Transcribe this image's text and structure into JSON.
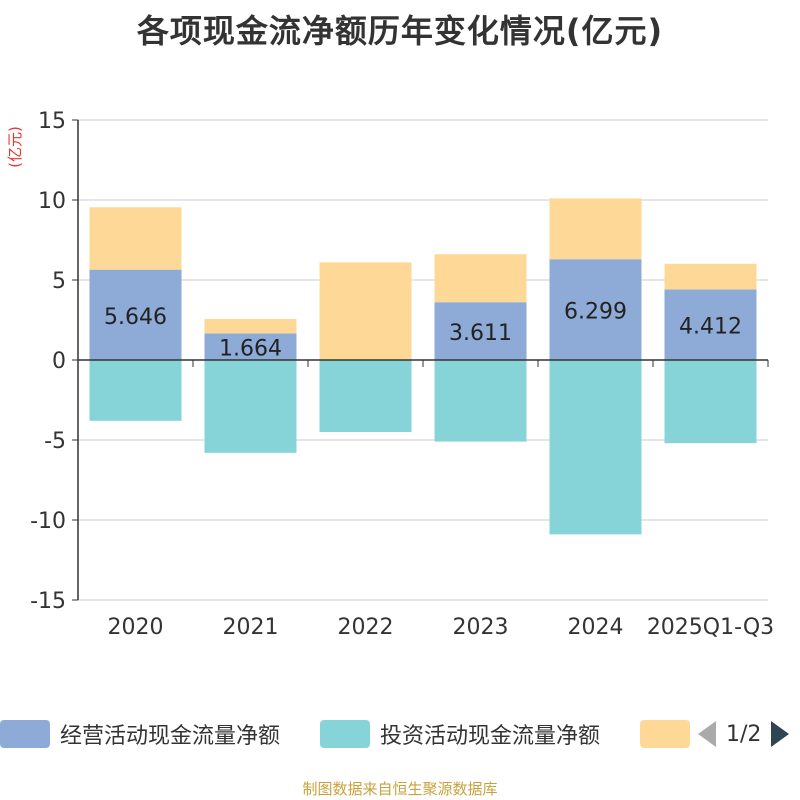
{
  "chart_data": {
    "type": "bar",
    "stacked": true,
    "title": "各项现金流净额历年变化情况(亿元)",
    "ylabel": "(亿元)",
    "xlabel": "",
    "ylim": [
      -15,
      15
    ],
    "yticks": [
      15,
      10,
      5,
      0,
      -5,
      -10,
      -15
    ],
    "grid": true,
    "categories": [
      "2020",
      "2021",
      "2022",
      "2023",
      "2024",
      "2025Q1-Q3"
    ],
    "series": [
      {
        "name": "经营活动现金流量净额",
        "color": "#8eabd8",
        "values": [
          5.646,
          1.664,
          0.001,
          3.611,
          6.299,
          4.412
        ],
        "labels": [
          "5.646",
          "1.664",
          "",
          "3.611",
          "6.299",
          "4.412"
        ]
      },
      {
        "name": "投资活动现金流量净额",
        "color": "#86d4d8",
        "values": [
          -3.8,
          -5.8,
          -4.5,
          -5.1,
          -10.9,
          -5.2
        ]
      },
      {
        "name": "",
        "color": "#fdd897",
        "values": [
          3.9,
          0.9,
          6.1,
          3.0,
          3.8,
          1.6
        ]
      }
    ]
  },
  "legend": {
    "page_text": "1/2"
  },
  "source": "制图数据来自恒生聚源数据库"
}
